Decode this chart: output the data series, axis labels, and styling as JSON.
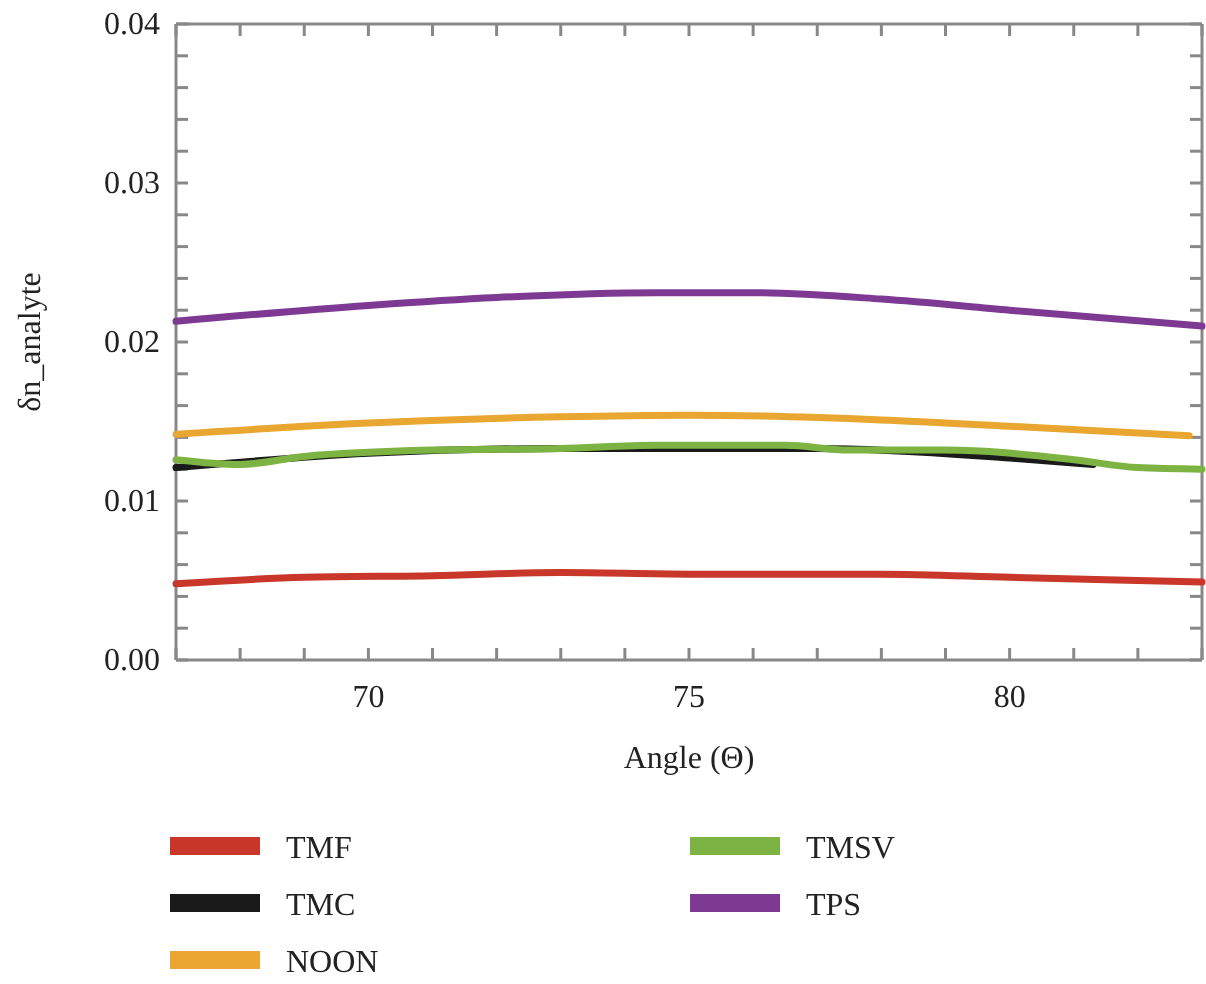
{
  "chart_data": {
    "type": "line",
    "xlabel": "Angle (Θ)",
    "ylabel": "δn_analyte",
    "xlim": [
      67,
      83
    ],
    "ylim": [
      0,
      0.04
    ],
    "xticks": [
      {
        "value": 67,
        "label": null
      },
      {
        "value": 68,
        "label": null
      },
      {
        "value": 69,
        "label": null
      },
      70,
      {
        "value": 71,
        "label": null
      },
      {
        "value": 72,
        "label": null
      },
      {
        "value": 73,
        "label": null
      },
      {
        "value": 74,
        "label": null
      },
      75,
      {
        "value": 76,
        "label": null
      },
      {
        "value": 77,
        "label": null
      },
      {
        "value": 78,
        "label": null
      },
      {
        "value": 79,
        "label": null
      },
      80,
      {
        "value": 81,
        "label": null
      },
      {
        "value": 82,
        "label": null
      },
      {
        "value": 83,
        "label": null
      }
    ],
    "yticks": [
      {
        "value": 0,
        "label": "0.00"
      },
      {
        "value": 0.002,
        "label": null
      },
      {
        "value": 0.004,
        "label": null
      },
      {
        "value": 0.006,
        "label": null
      },
      {
        "value": 0.008,
        "label": null
      },
      0.01,
      {
        "value": 0.012,
        "label": null
      },
      {
        "value": 0.014,
        "label": null
      },
      {
        "value": 0.016,
        "label": null
      },
      {
        "value": 0.018,
        "label": null
      },
      0.02,
      {
        "value": 0.022,
        "label": null
      },
      {
        "value": 0.024,
        "label": null
      },
      {
        "value": 0.026,
        "label": null
      },
      {
        "value": 0.028,
        "label": null
      },
      0.03,
      {
        "value": 0.032,
        "label": null
      },
      {
        "value": 0.034,
        "label": null
      },
      {
        "value": 0.036,
        "label": null
      },
      {
        "value": 0.038,
        "label": null
      },
      0.04
    ],
    "grid": false,
    "legend": "bottom",
    "marker": "none",
    "line_style": "solid",
    "series": [
      {
        "name": "TMF",
        "color": "#c8372a",
        "x": [
          67,
          69,
          71,
          73,
          75,
          78,
          80,
          83
        ],
        "values": [
          0.0048,
          0.0052,
          0.0053,
          0.0055,
          0.0054,
          0.0054,
          0.0052,
          0.0049
        ]
      },
      {
        "name": "TMC",
        "color": "#1a1a1a",
        "x": [
          67,
          70,
          73,
          75,
          77,
          80,
          81.3
        ],
        "values": [
          0.0121,
          0.013,
          0.0133,
          0.0133,
          0.0133,
          0.0127,
          0.0123
        ]
      },
      {
        "name": "NOON",
        "color": "#e9a630",
        "x": [
          67,
          70,
          73,
          75,
          78,
          80,
          82.8
        ],
        "values": [
          0.0142,
          0.0149,
          0.0153,
          0.0154,
          0.0151,
          0.0147,
          0.0141
        ]
      },
      {
        "name": "TMSV",
        "color": "#7db342",
        "x": [
          67,
          68,
          69,
          71,
          73,
          74.5,
          76.5,
          77.5,
          79,
          81,
          82,
          83
        ],
        "values": [
          0.0126,
          0.0123,
          0.0128,
          0.0132,
          0.0133,
          0.0135,
          0.0135,
          0.0132,
          0.0132,
          0.0126,
          0.0121,
          0.012
        ]
      },
      {
        "name": "TPS",
        "color": "#7e3a92",
        "x": [
          67,
          70,
          72,
          74.5,
          76,
          78,
          80,
          83
        ],
        "values": [
          0.0213,
          0.0223,
          0.0228,
          0.0231,
          0.0231,
          0.0227,
          0.022,
          0.021
        ]
      }
    ]
  }
}
